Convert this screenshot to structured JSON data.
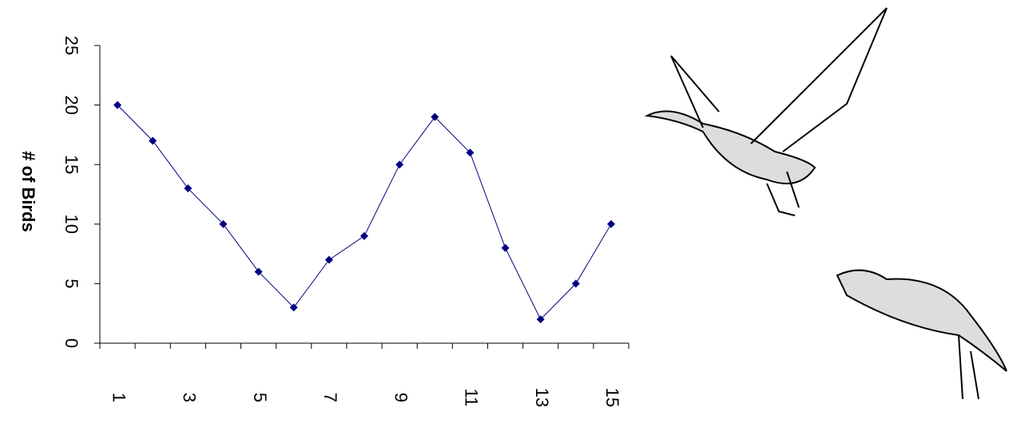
{
  "chart_data": {
    "type": "line",
    "y_label": "# of Birds",
    "categories": [
      "1",
      null,
      "3",
      null,
      "5",
      null,
      "7",
      null,
      "9",
      null,
      "11",
      null,
      "13",
      null,
      "15"
    ],
    "series": [
      {
        "name": "Birds",
        "color": "#000080",
        "values": [
          20,
          17,
          13,
          10,
          6,
          3,
          7,
          9,
          15,
          19,
          16,
          8,
          2,
          5,
          10
        ]
      }
    ],
    "ylim": [
      0,
      25
    ],
    "yticks": [
      0,
      5,
      10,
      15,
      20,
      25
    ],
    "grid": false
  }
}
